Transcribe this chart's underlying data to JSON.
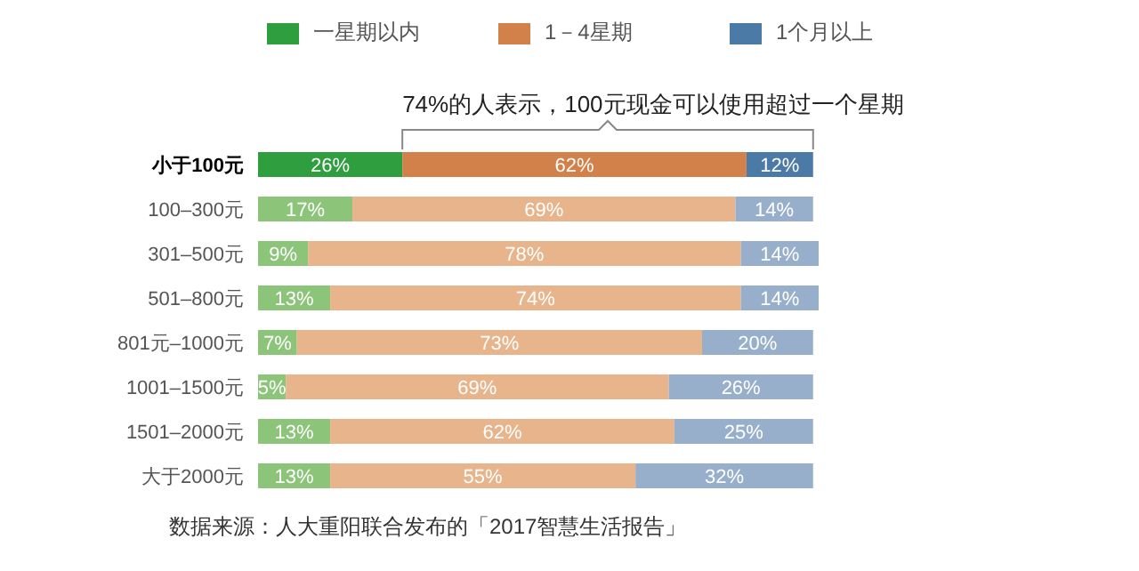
{
  "chart_data": {
    "type": "bar",
    "orientation": "horizontal",
    "stacked": true,
    "legend": "top",
    "categories": [
      "小于100元",
      "100–300元",
      "301–500元",
      "501–800元",
      "801元–1000元",
      "1001–1500元",
      "1501–2000元",
      "大于2000元"
    ],
    "series": [
      {
        "name": "一星期以内",
        "color": "#2e9e3e",
        "colors": [
          "#2e9e3e",
          "#8cc47a",
          "#8cc47a",
          "#8cc47a",
          "#8cc47a",
          "#8cc47a",
          "#8cc47a",
          "#8cc47a"
        ],
        "values": [
          26,
          17,
          9,
          13,
          7,
          5,
          13,
          13
        ],
        "value_labels": [
          "26%",
          "17%",
          "9%",
          "13%",
          "7%",
          "5%",
          "13%",
          "13%"
        ]
      },
      {
        "name": "1－4星期",
        "color": "#d2814b",
        "colors": [
          "#d2814b",
          "#e8b48b",
          "#e8b48b",
          "#e8b48b",
          "#e8b48b",
          "#e8b48b",
          "#e8b48b",
          "#e8b48b"
        ],
        "values": [
          62,
          69,
          78,
          74,
          73,
          69,
          62,
          55
        ],
        "value_labels": [
          "62%",
          "69%",
          "78%",
          "74%",
          "73%",
          "69%",
          "62%",
          "55%"
        ]
      },
      {
        "name": "1个月以上",
        "color": "#4c7aa7",
        "colors": [
          "#4c7aa7",
          "#98afcc",
          "#98afcc",
          "#98afcc",
          "#98afcc",
          "#98afcc",
          "#98afcc",
          "#98afcc"
        ],
        "values": [
          12,
          14,
          14,
          14,
          20,
          26,
          25,
          32
        ],
        "value_labels": [
          "12%",
          "14%",
          "14%",
          "14%",
          "20%",
          "26%",
          "25%",
          "32%"
        ]
      }
    ],
    "annotations": [
      "74%的人表示，100元现金可以使用超过一个星期",
      "数据来源：人大重阳联合发布的「2017智慧生活报告」"
    ]
  }
}
